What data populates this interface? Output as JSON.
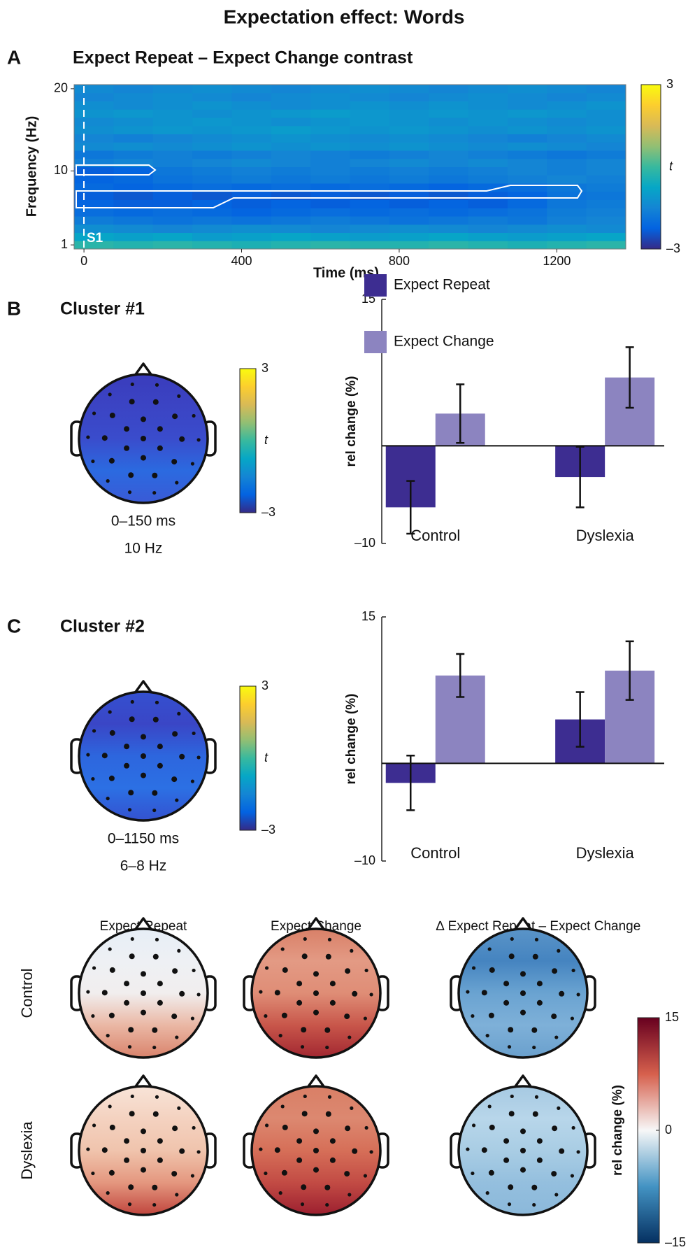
{
  "title": "Expectation effect: Words",
  "chart_data": [
    {
      "type": "heatmap",
      "panel": "A",
      "title": "Expect Repeat – Expect Change contrast",
      "x_label": "Time (ms)",
      "y_label": "Frequency (Hz)",
      "annotation": "S1",
      "x": [
        25,
        125,
        225,
        325,
        425,
        525,
        625,
        725,
        825,
        925,
        1025,
        1125,
        1225,
        1325
      ],
      "y": [
        1,
        2,
        3,
        4,
        5,
        6,
        7,
        8,
        9,
        10,
        11,
        12,
        13,
        14,
        15,
        16,
        17,
        18,
        19,
        20
      ],
      "values": [
        [
          -0.2,
          -0.3,
          -0.2,
          -0.3,
          -0.4,
          -0.3,
          -0.2,
          -0.3,
          -0.3,
          -0.2,
          -0.3,
          -0.4,
          -0.3,
          -0.2
        ],
        [
          -0.8,
          -0.9,
          -0.8,
          -1.0,
          -0.9,
          -0.8,
          -0.9,
          -1.0,
          -0.9,
          -0.8,
          -0.9,
          -1.0,
          -0.9,
          -0.8
        ],
        [
          -1.3,
          -1.4,
          -1.5,
          -1.4,
          -1.3,
          -1.4,
          -1.5,
          -1.4,
          -1.3,
          -1.4,
          -1.5,
          -1.4,
          -1.3,
          -1.4
        ],
        [
          -1.7,
          -1.8,
          -1.9,
          -1.8,
          -1.9,
          -1.8,
          -1.7,
          -1.8,
          -1.9,
          -1.8,
          -1.7,
          -1.8,
          -1.6,
          -1.5
        ],
        [
          -2.0,
          -2.1,
          -2.0,
          -2.1,
          -2.2,
          -2.1,
          -2.0,
          -2.1,
          -2.0,
          -2.1,
          -2.0,
          -1.9,
          -1.7,
          -1.6
        ],
        [
          -2.2,
          -2.3,
          -2.3,
          -2.2,
          -2.3,
          -2.2,
          -2.3,
          -2.2,
          -2.3,
          -2.2,
          -2.3,
          -2.1,
          -1.8,
          -1.7
        ],
        [
          -2.3,
          -2.4,
          -2.3,
          -2.4,
          -2.3,
          -2.4,
          -2.3,
          -2.4,
          -2.3,
          -2.4,
          -2.3,
          -2.2,
          -1.9,
          -1.8
        ],
        [
          -2.1,
          -2.2,
          -2.1,
          -2.0,
          -2.1,
          -2.0,
          -2.1,
          -2.0,
          -2.1,
          -2.2,
          -2.1,
          -2.0,
          -1.8,
          -1.7
        ],
        [
          -2.2,
          -2.1,
          -1.9,
          -1.8,
          -1.7,
          -1.8,
          -1.7,
          -1.8,
          -1.7,
          -1.8,
          -1.7,
          -1.6,
          -1.5,
          -1.6
        ],
        [
          -2.3,
          -2.2,
          -1.8,
          -1.7,
          -1.6,
          -1.7,
          -1.6,
          -1.7,
          -1.6,
          -1.7,
          -1.6,
          -1.5,
          -1.6,
          -1.5
        ],
        [
          -1.6,
          -1.5,
          -1.6,
          -1.5,
          -1.4,
          -1.5,
          -1.6,
          -1.5,
          -1.4,
          -1.5,
          -1.4,
          -1.5,
          -1.6,
          -1.5
        ],
        [
          -1.8,
          -1.7,
          -1.6,
          -1.7,
          -1.6,
          -1.5,
          -1.6,
          -1.7,
          -1.6,
          -1.5,
          -1.6,
          -1.7,
          -1.8,
          -1.7
        ],
        [
          -1.4,
          -1.3,
          -1.4,
          -1.3,
          -1.2,
          -1.3,
          -1.2,
          -1.3,
          -1.2,
          -1.3,
          -1.4,
          -1.3,
          -1.4,
          -1.5
        ],
        [
          -1.5,
          -1.6,
          -1.5,
          -1.4,
          -1.3,
          -1.2,
          -1.3,
          -1.4,
          -1.3,
          -1.4,
          -1.5,
          -1.6,
          -1.5,
          -1.4
        ],
        [
          -1.3,
          -1.2,
          -1.1,
          -1.2,
          -1.1,
          -1.0,
          -1.1,
          -1.2,
          -1.1,
          -1.2,
          -1.3,
          -1.2,
          -1.3,
          -1.2
        ],
        [
          -1.4,
          -1.3,
          -1.2,
          -1.1,
          -1.2,
          -1.3,
          -1.2,
          -1.1,
          -1.2,
          -1.3,
          -1.2,
          -1.3,
          -1.4,
          -1.3
        ],
        [
          -1.2,
          -1.1,
          -1.2,
          -1.3,
          -1.2,
          -1.1,
          -1.0,
          -1.1,
          -1.2,
          -1.1,
          -1.2,
          -1.1,
          -1.2,
          -1.3
        ],
        [
          -1.3,
          -1.4,
          -1.3,
          -1.2,
          -1.3,
          -1.4,
          -1.3,
          -1.2,
          -1.3,
          -1.2,
          -1.3,
          -1.4,
          -1.3,
          -1.2
        ],
        [
          -1.5,
          -1.4,
          -1.3,
          -1.4,
          -1.5,
          -1.4,
          -1.3,
          -1.4,
          -1.5,
          -1.4,
          -1.3,
          -1.4,
          -1.5,
          -1.4
        ],
        [
          -1.4,
          -1.5,
          -1.4,
          -1.3,
          -1.4,
          -1.5,
          -1.4,
          -1.3,
          -1.4,
          -1.5,
          -1.4,
          -1.3,
          -1.4,
          -1.5
        ]
      ],
      "xlim": [
        -25,
        1375
      ],
      "ylim": [
        0.5,
        20.5
      ],
      "xticks": [
        0,
        400,
        800,
        1200
      ],
      "yticks": [
        1,
        10,
        20
      ],
      "colormap": "parula",
      "colorbar": {
        "lim": [
          -3,
          3
        ],
        "ticks": [
          3,
          {
            "value": -3,
            "label": "–3"
          }
        ],
        "label": "t"
      }
    },
    {
      "type": "bar",
      "panel": "B",
      "title": "Cluster #1",
      "topomap_labels": [
        "0–150 ms",
        "10 Hz"
      ],
      "colormap": "parula",
      "colorbar": {
        "lim": [
          -3,
          3
        ],
        "ticks": [
          3,
          {
            "value": -3,
            "label": "–3"
          }
        ],
        "label": "t"
      },
      "y_label": "rel change (%)",
      "categories": [
        "Control",
        "Dyslexia"
      ],
      "series": [
        {
          "name": "Expect Repeat",
          "color": "#3d2d91",
          "values": [
            -6.3,
            -3.2
          ],
          "errors": [
            2.7,
            3.1
          ]
        },
        {
          "name": "Expect Change",
          "color": "#8c84c0",
          "values": [
            3.3,
            7.0
          ],
          "errors": [
            3.0,
            3.1
          ]
        }
      ],
      "ylim": [
        -10,
        15
      ],
      "yticks": [
        15,
        {
          "value": -10,
          "label": "–10"
        }
      ],
      "legend": "upper-right"
    },
    {
      "type": "bar",
      "panel": "C",
      "title": "Cluster #2",
      "topomap_labels": [
        "0–1150 ms",
        "6–8 Hz"
      ],
      "colormap": "parula",
      "colorbar": {
        "lim": [
          -3,
          3
        ],
        "ticks": [
          3,
          {
            "value": -3,
            "label": "–3"
          }
        ],
        "label": "t"
      },
      "y_label": "rel change (%)",
      "categories": [
        "Control",
        "Dyslexia"
      ],
      "series": [
        {
          "color": "#3d2d91",
          "values": [
            -2.0,
            4.5
          ],
          "errors": [
            2.8,
            2.8
          ]
        },
        {
          "color": "#8c84c0",
          "values": [
            9.0,
            9.5
          ],
          "errors": [
            2.2,
            3.0
          ]
        }
      ],
      "ylim": [
        -10,
        15
      ],
      "yticks": [
        15,
        {
          "value": -10,
          "label": "–10"
        }
      ]
    },
    {
      "type": "topomap",
      "columns": [
        "Expect Repeat",
        "Expect Change",
        "∆ Expect Repeat – Expect Change"
      ],
      "rows": [
        "Control",
        "Dyslexia"
      ],
      "colormap": "RdBu",
      "colorbar": {
        "lim": [
          -15,
          15
        ],
        "ticks": [
          15,
          0,
          {
            "value": -15,
            "label": "–15"
          }
        ],
        "label": "rel change (%)"
      }
    }
  ]
}
